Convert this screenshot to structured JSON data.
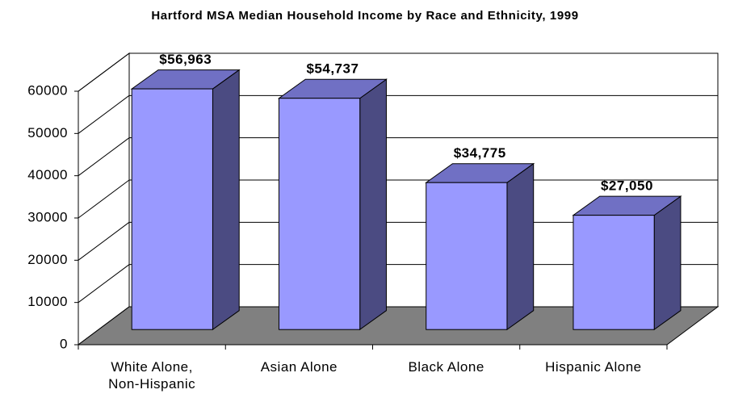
{
  "chart_data": {
    "type": "bar3d",
    "title": "Hartford MSA Median Household Income by Race and Ethnicity, 1999",
    "categories": [
      "White Alone,\nNon-Hispanic",
      "Asian Alone",
      "Black Alone",
      "Hispanic Alone"
    ],
    "values": [
      56963,
      54737,
      34775,
      27050
    ],
    "value_labels": [
      "$56,963",
      "$54,737",
      "$34,775",
      "$27,050"
    ],
    "color": "#9999ff",
    "ylim": [
      0,
      60000
    ],
    "yticks": [
      0,
      10000,
      20000,
      30000,
      40000,
      50000,
      60000
    ],
    "grid": true
  }
}
